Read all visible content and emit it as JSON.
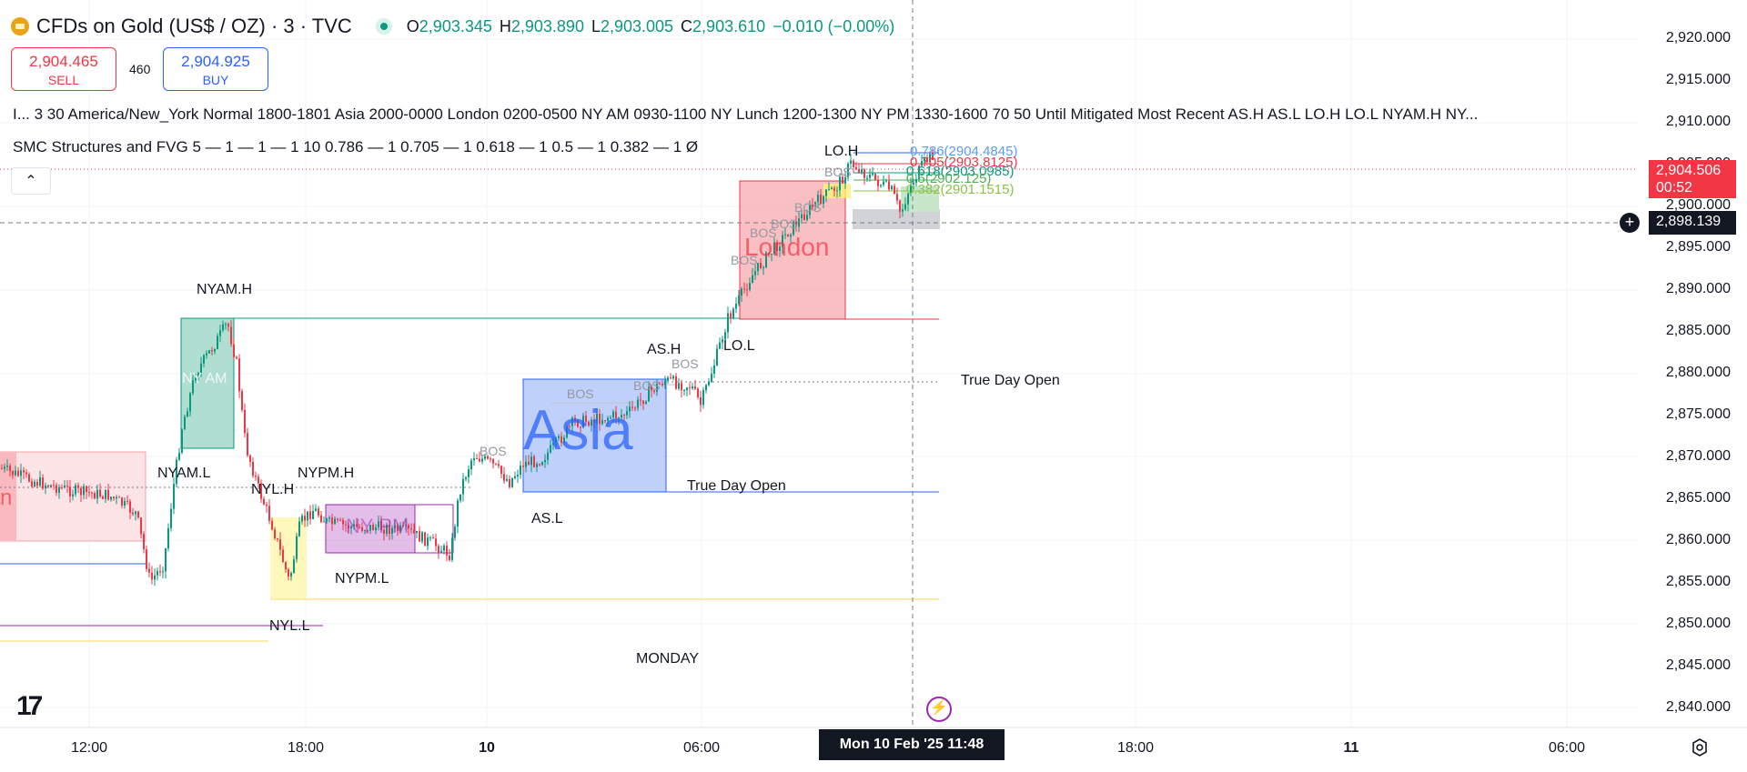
{
  "header": {
    "symbol_title": "CFDs on Gold (US$ / OZ) · 3 · TVC",
    "ohlc": [
      {
        "label": "O",
        "value": "2,903.345"
      },
      {
        "label": "H",
        "value": "2,903.890"
      },
      {
        "label": "L",
        "value": "2,903.005"
      },
      {
        "label": "C",
        "value": "2,903.610"
      }
    ],
    "change": "−0.010 (−0.00%)"
  },
  "trade": {
    "sell_price": "2,904.465",
    "sell_label": "SELL",
    "spread": "460",
    "buy_price": "2,904.925",
    "buy_label": "BUY"
  },
  "indicators": {
    "sessions_line": "I... 3 30 America/New_York Normal 1800-1801 Asia 2000-0000 London 0200-0500 NY AM 0930-1100 NY Lunch 1200-1300 NY PM 1330-1600 70 50 Until Mitigated Most Recent AS.H AS.L LO.H LO.L NYAM.H NY...",
    "smc_line": "SMC Structures and FVG 5 — 1 — 1 — 1 10 0.786 — 1 0.705 — 1 0.618 — 1 0.5 — 1 0.382 — 1  Ø",
    "collapse_icon": "chevron-up-icon"
  },
  "price_axis": {
    "ticks": [
      "2,920.000",
      "2,915.000",
      "2,910.000",
      "2,905.000",
      "2,900.000",
      "2,895.000",
      "2,890.000",
      "2,885.000",
      "2,880.000",
      "2,875.000",
      "2,870.000",
      "2,865.000",
      "2,860.000",
      "2,855.000",
      "2,850.000",
      "2,845.000",
      "2,840.000"
    ],
    "current_price": "2,904.506",
    "countdown": "00:52",
    "crosshair_price": "2,898.139"
  },
  "time_axis": {
    "ticks": [
      "12:00",
      "18:00",
      "10",
      "06:00",
      "18:00",
      "11",
      "06:00"
    ],
    "crosshair_time": "Mon 10 Feb '25   11:48"
  },
  "chart_labels": {
    "session_names": {
      "asia": "Asia",
      "london": "London",
      "nyam": "NY AM",
      "nypm": "NY PM",
      "prev": "n"
    },
    "levels": {
      "nyam_h": "NYAM.H",
      "nyam_l": "NYAM.L",
      "nyl_h": "NYL.H",
      "nyl_l": "NYL.L",
      "nypm_h": "NYPM.H",
      "nypm_l": "NYPM.L",
      "as_h": "AS.H",
      "as_l": "AS.L",
      "lo_h": "LO.H",
      "lo_l": "LO.L",
      "tdo": "True Day Open",
      "day": "MONDAY"
    },
    "bos": "BOS",
    "fib": [
      "0.786(2904.4845)",
      "0.705(2903.8125)",
      "0.618(2903.0985)",
      "0.5(2902.125)",
      "0.382(2901.1515)"
    ],
    "fib_colors": [
      "#5b9cf6",
      "#f23645",
      "#089981",
      "#4caf50",
      "#8bc34a"
    ]
  },
  "colors": {
    "up": "#089981",
    "down": "#f23645",
    "asia": "#2962ff",
    "london": "#f23645",
    "nyam": "#089981",
    "nypm": "#9c27b0",
    "lunch": "#ffeb3b"
  }
}
